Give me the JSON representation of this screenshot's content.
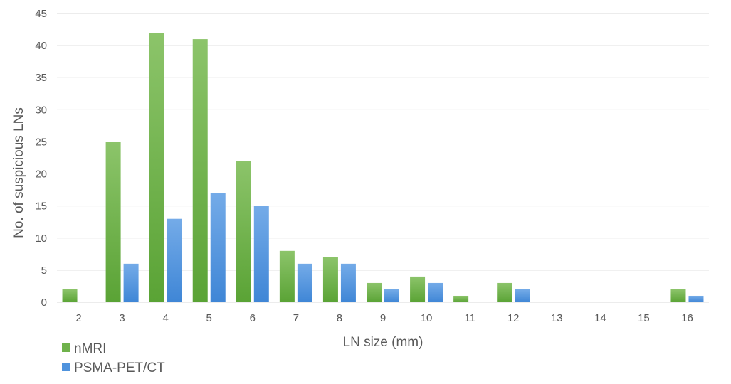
{
  "chart_data": {
    "type": "bar",
    "categories": [
      "2",
      "3",
      "4",
      "5",
      "6",
      "7",
      "8",
      "9",
      "10",
      "11",
      "12",
      "13",
      "14",
      "15",
      "16"
    ],
    "series": [
      {
        "name": "nMRI",
        "values": [
          2,
          25,
          42,
          41,
          22,
          8,
          7,
          3,
          4,
          1,
          3,
          0,
          0,
          0,
          2
        ],
        "color": "#6fb24b"
      },
      {
        "name": "PSMA-PET/CT",
        "values": [
          0,
          6,
          13,
          17,
          15,
          6,
          6,
          2,
          3,
          0,
          2,
          0,
          0,
          0,
          1
        ],
        "color": "#4f93dd"
      }
    ],
    "xlabel": "LN size (mm)",
    "ylabel": "No. of suspicious LNs",
    "ylim": [
      0,
      45
    ],
    "yticks": [
      "0",
      "5",
      "10",
      "15",
      "20",
      "25",
      "30",
      "35",
      "40",
      "45"
    ],
    "grid": true,
    "legend": "bottom-left"
  }
}
